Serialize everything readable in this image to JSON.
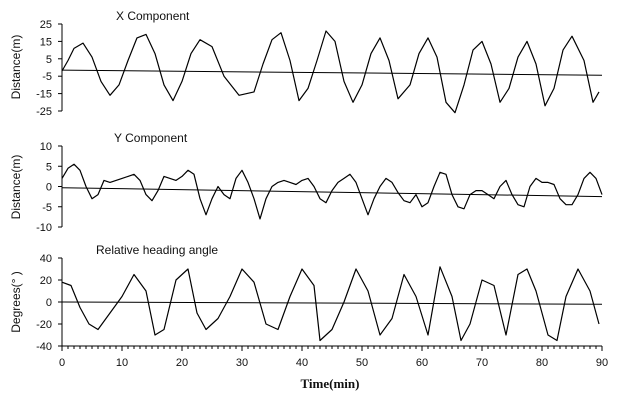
{
  "chart_data": [
    {
      "type": "line",
      "title": "X Component",
      "ylabel": "Distance(m)",
      "ylim": [
        -25,
        25
      ],
      "yticks": [
        25,
        15,
        5,
        -5,
        -15,
        -25
      ],
      "xlim": [
        0,
        90
      ],
      "series": [
        {
          "role": "oscillation",
          "x": [
            0,
            1,
            2,
            3.5,
            5,
            6.5,
            8,
            9.5,
            11,
            12.5,
            14,
            15.5,
            17,
            18.5,
            20,
            21.5,
            23,
            25,
            27,
            29.5,
            32,
            33.5,
            35,
            36.5,
            38,
            39.5,
            41,
            42.5,
            44,
            45.5,
            47,
            48.5,
            50,
            51.5,
            53,
            54.5,
            56,
            58,
            59.5,
            61,
            62.5,
            64,
            65.5,
            67,
            68.5,
            70,
            71.5,
            73,
            74.5,
            76,
            77.5,
            79,
            80.5,
            82,
            83.5,
            85,
            87,
            88.5,
            89.5
          ],
          "y": [
            -2,
            4,
            11,
            14,
            6,
            -8,
            -16,
            -10,
            4,
            17,
            19,
            8,
            -10,
            -19,
            -8,
            8,
            16,
            12,
            -5,
            -16,
            -14,
            2,
            16,
            20,
            4,
            -19,
            -12,
            4,
            21,
            15,
            -8,
            -20,
            -10,
            8,
            17,
            4,
            -18,
            -10,
            8,
            17,
            6,
            -20,
            -26,
            -10,
            10,
            15,
            2,
            -20,
            -12,
            6,
            15,
            2,
            -22,
            -12,
            10,
            18,
            4,
            -20,
            -14
          ]
        },
        {
          "role": "trend",
          "x": [
            0,
            90
          ],
          "y": [
            -1.5,
            -4.5
          ]
        }
      ]
    },
    {
      "type": "line",
      "title": "Y Component",
      "ylabel": "Distance(m)",
      "ylim": [
        -10,
        10
      ],
      "yticks": [
        10,
        5,
        0,
        -5,
        -10
      ],
      "xlim": [
        0,
        90
      ],
      "series": [
        {
          "role": "oscillation",
          "x": [
            0,
            1,
            2,
            3,
            4,
            5,
            6,
            7,
            8,
            9,
            10,
            11,
            12,
            13,
            14,
            15,
            16,
            17,
            18,
            19,
            20,
            21,
            22,
            23,
            24,
            25,
            26,
            27,
            28,
            29,
            30,
            31,
            32,
            33,
            34,
            35,
            36,
            37,
            38,
            39,
            40,
            41,
            42,
            43,
            44,
            45,
            46,
            47,
            48,
            49,
            50,
            51,
            52,
            53,
            54,
            55,
            56,
            57,
            58,
            59,
            60,
            61,
            62,
            63,
            64,
            65,
            66,
            67,
            68,
            69,
            70,
            71,
            72,
            73,
            74,
            75,
            76,
            77,
            78,
            79,
            80,
            81,
            82,
            83,
            84,
            85,
            86,
            87,
            88,
            89,
            90
          ],
          "y": [
            2,
            4.5,
            5.5,
            4,
            0,
            -3,
            -2,
            1.5,
            1,
            1.5,
            2,
            2.5,
            3,
            1.5,
            -2,
            -3.5,
            -1,
            2.5,
            2,
            1.5,
            2.5,
            4,
            3,
            -3,
            -7,
            -3,
            0,
            -2,
            -3,
            2,
            4,
            1,
            -3,
            -8,
            -3,
            0,
            1,
            1.5,
            1,
            0.5,
            1.5,
            2,
            0,
            -3,
            -4,
            -1,
            1,
            2,
            3,
            1,
            -3,
            -7,
            -3,
            0,
            2,
            1,
            -1.5,
            -3.5,
            -4,
            -2,
            -5,
            -4,
            0,
            3.5,
            3,
            -2,
            -5,
            -5.5,
            -2,
            -1,
            -1,
            -2,
            -3,
            0,
            1.5,
            -2,
            -4.5,
            -5,
            0,
            2,
            1,
            1,
            0.5,
            -3,
            -4.5,
            -4.5,
            -2,
            2,
            3.5,
            2,
            -2
          ]
        },
        {
          "role": "trend",
          "x": [
            0,
            90
          ],
          "y": [
            -0.3,
            -2.5
          ]
        }
      ]
    },
    {
      "type": "line",
      "title": "Relative heading angle",
      "ylabel": "Degrees(° )",
      "ylim": [
        -40,
        40
      ],
      "yticks": [
        40,
        20,
        0,
        -20,
        -40
      ],
      "xlim": [
        0,
        90
      ],
      "xticks": [
        0,
        10,
        20,
        30,
        40,
        50,
        60,
        70,
        80,
        90
      ],
      "xlabel": "Time(min)",
      "series": [
        {
          "role": "oscillation",
          "x": [
            0,
            1.5,
            3,
            4.5,
            6,
            8,
            10,
            12,
            14,
            15.5,
            17,
            19,
            21,
            22.5,
            24,
            26,
            28,
            30,
            32,
            34,
            36,
            38,
            40,
            42,
            43,
            45,
            47,
            49,
            51,
            53,
            55,
            57,
            59,
            61,
            63,
            65,
            66.5,
            68,
            70,
            72,
            74,
            76,
            77.5,
            79,
            81,
            82.5,
            84,
            86,
            88,
            89.5
          ],
          "y": [
            18,
            15,
            -5,
            -20,
            -25,
            -10,
            5,
            25,
            10,
            -30,
            -25,
            20,
            30,
            -10,
            -25,
            -15,
            5,
            30,
            18,
            -20,
            -25,
            5,
            30,
            15,
            -35,
            -25,
            0,
            30,
            10,
            -30,
            -15,
            25,
            5,
            -30,
            32,
            5,
            -35,
            -20,
            20,
            15,
            -30,
            25,
            30,
            10,
            -30,
            -35,
            5,
            30,
            10,
            -20
          ]
        },
        {
          "role": "trend",
          "x": [
            0,
            90
          ],
          "y": [
            0,
            -2
          ]
        }
      ]
    }
  ]
}
